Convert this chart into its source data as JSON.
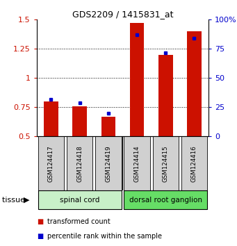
{
  "title": "GDS2209 / 1415831_at",
  "samples": [
    "GSM124417",
    "GSM124418",
    "GSM124419",
    "GSM124414",
    "GSM124415",
    "GSM124416"
  ],
  "red_values": [
    0.8,
    0.76,
    0.67,
    1.47,
    1.2,
    1.4
  ],
  "blue_values": [
    0.82,
    0.79,
    0.7,
    1.37,
    1.215,
    1.34
  ],
  "red_base": 0.5,
  "ylim_left": [
    0.5,
    1.5
  ],
  "ylim_right": [
    0,
    100
  ],
  "yticks_left": [
    0.5,
    0.75,
    1.0,
    1.25,
    1.5
  ],
  "yticks_right": [
    0,
    25,
    50,
    75,
    100
  ],
  "ytick_labels_left": [
    "0.5",
    "0.75",
    "1",
    "1.25",
    "1.5"
  ],
  "ytick_labels_right": [
    "0",
    "25",
    "50",
    "75",
    "100%"
  ],
  "groups": [
    {
      "label": "spinal cord",
      "indices": [
        0,
        1,
        2
      ],
      "color": "#c8f0c8"
    },
    {
      "label": "dorsal root ganglion",
      "indices": [
        3,
        4,
        5
      ],
      "color": "#66dd66"
    }
  ],
  "tissue_label": "tissue",
  "legend_red": "transformed count",
  "legend_blue": "percentile rank within the sample",
  "bar_color": "#cc1100",
  "blue_color": "#0000cc",
  "bar_width": 0.5,
  "label_color_left": "#cc1100",
  "label_color_right": "#0000cc",
  "gray_box_color": "#d0d0d0"
}
